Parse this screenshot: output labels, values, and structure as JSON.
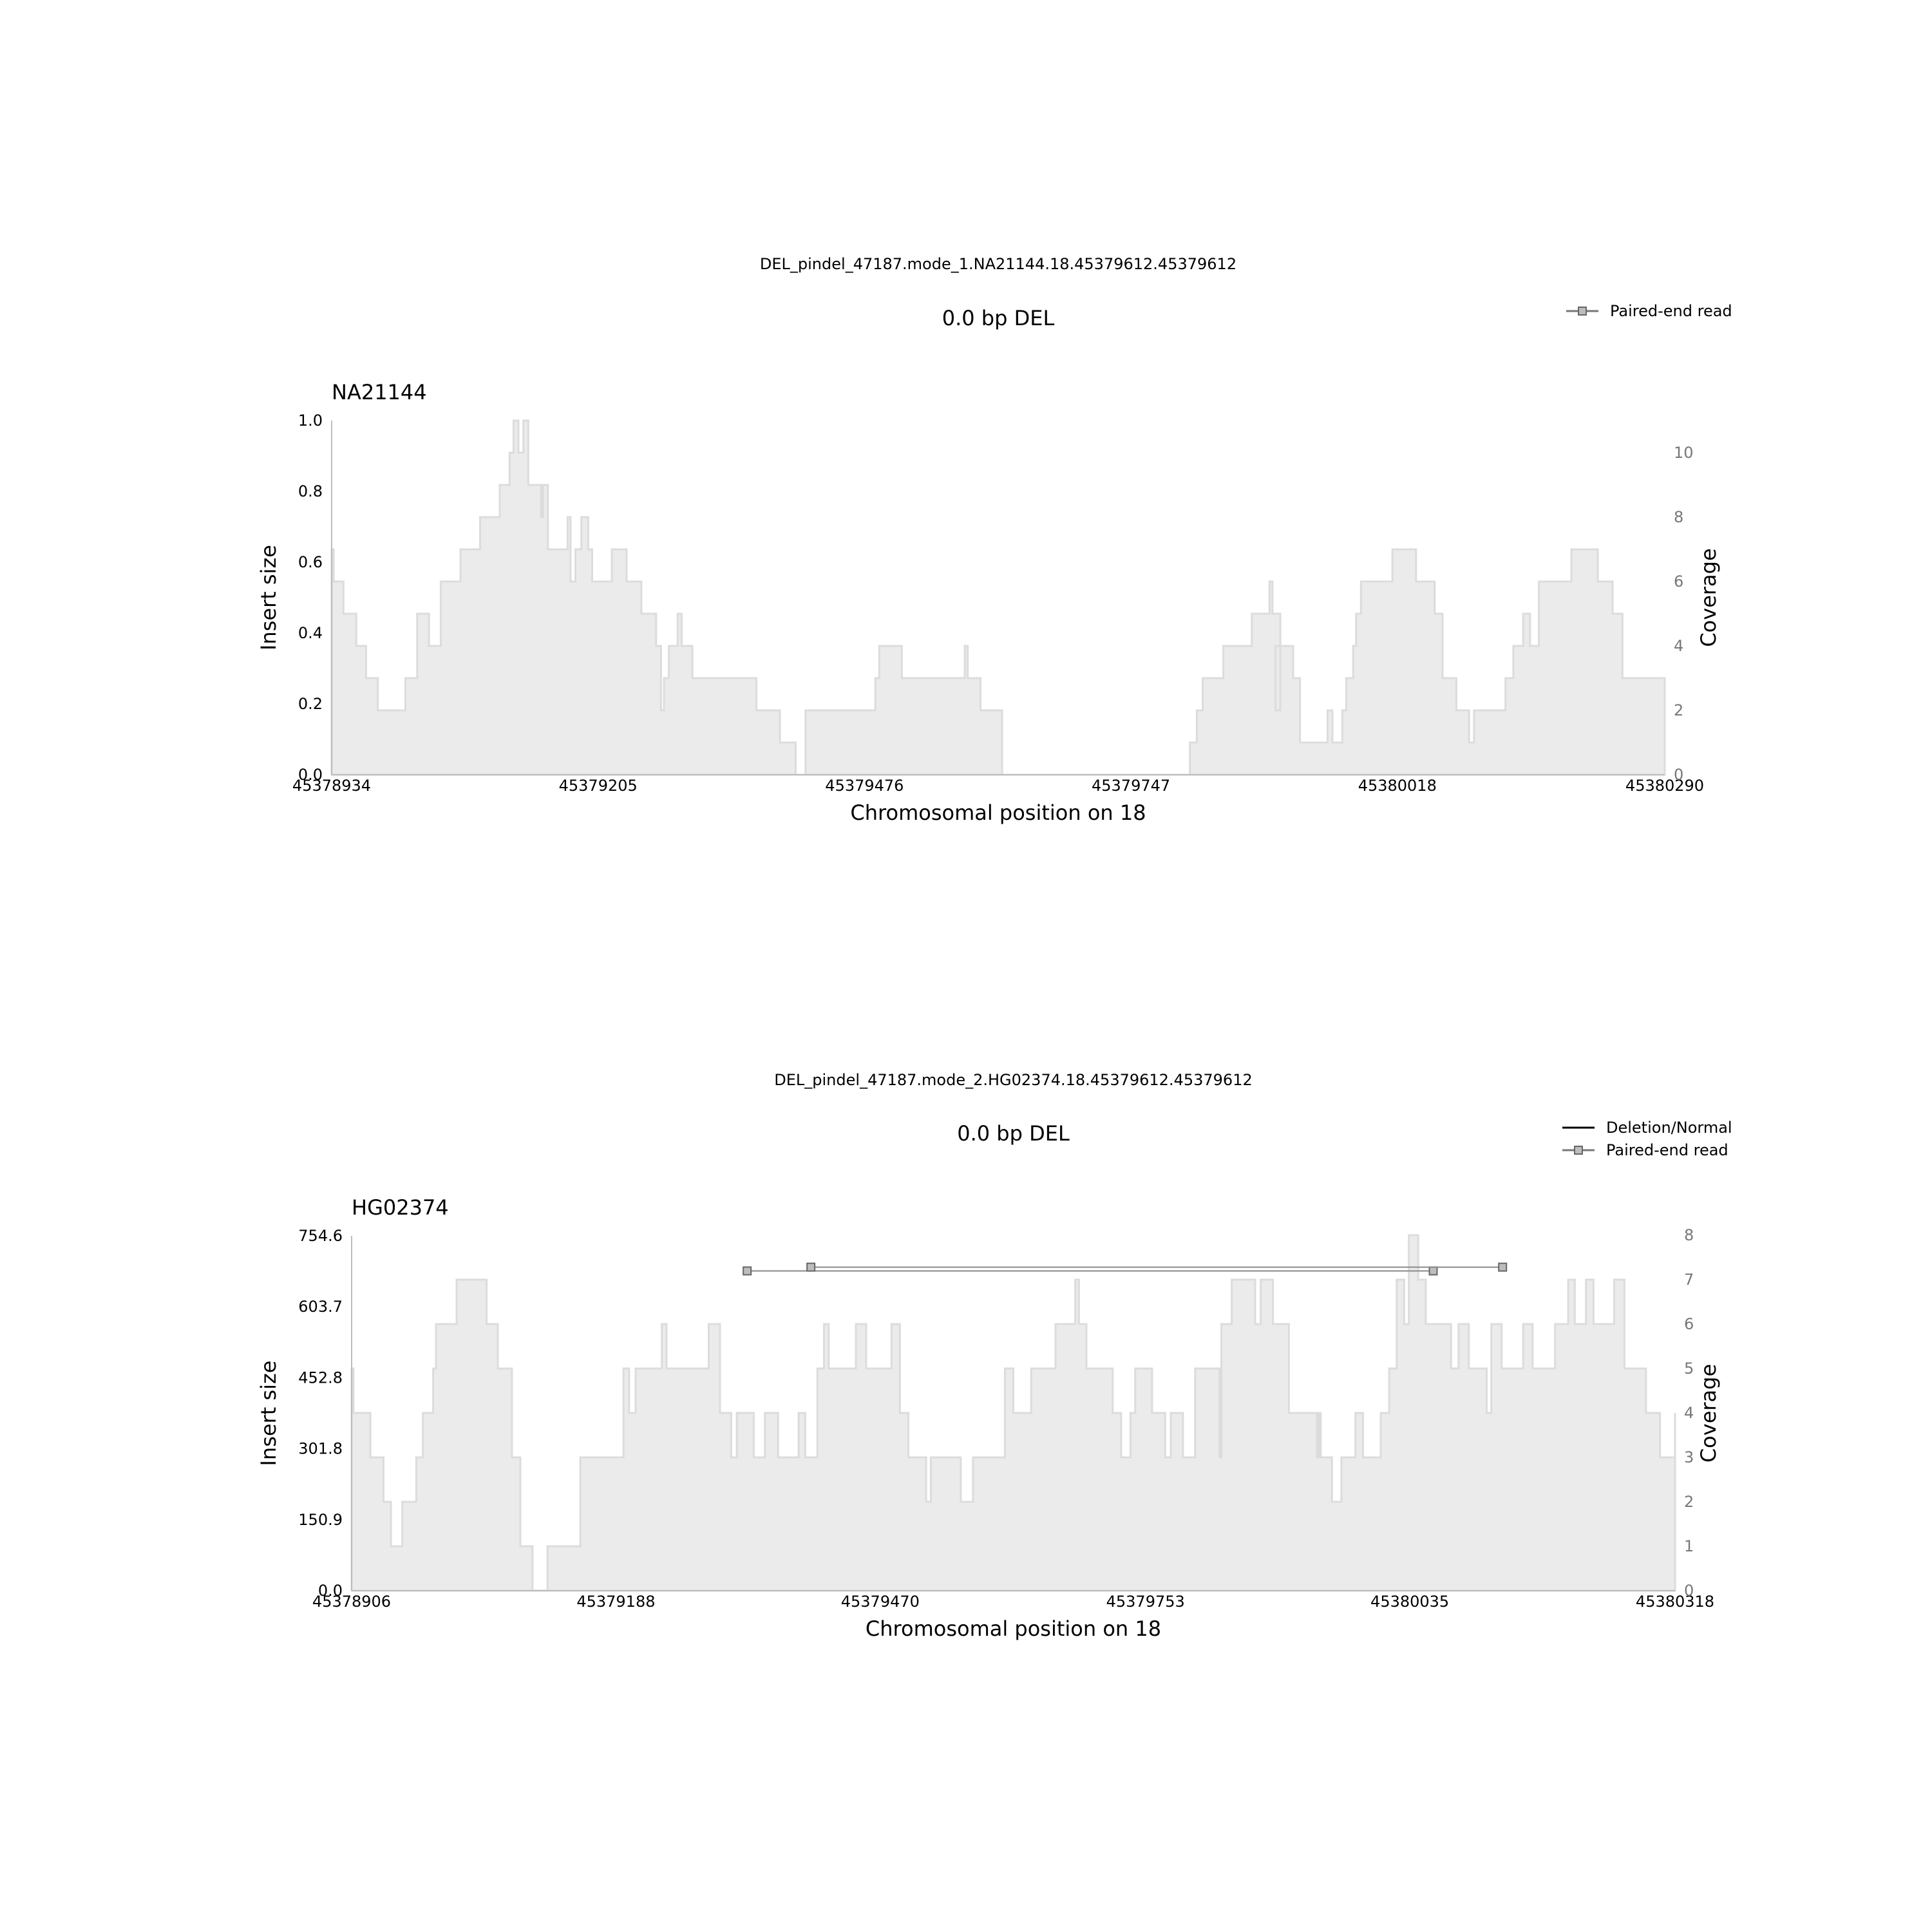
{
  "chart_data": [
    {
      "type": "area",
      "suptitle": "DEL_pindel_47187.mode_1.NA21144.18.45379612.45379612",
      "title": "0.0 bp DEL",
      "sample": "NA21144",
      "xlabel": "Chromosomal position on 18",
      "ylabel": "Insert size",
      "y2label": "Coverage",
      "xlim": [
        45378934,
        45380290
      ],
      "xticks": [
        "45378934",
        "45379205",
        "45379476",
        "45379747",
        "45380018",
        "45380290"
      ],
      "ylim": [
        0,
        1.0
      ],
      "yticks": [
        "0.0",
        "0.2",
        "0.4",
        "0.6",
        "0.8",
        "1.0"
      ],
      "y2lim": [
        0,
        11
      ],
      "y2ticks": [
        "0",
        "2",
        "4",
        "6",
        "8",
        "10"
      ],
      "legend": [
        {
          "label": "Paired-end read",
          "kind": "read"
        }
      ],
      "legend_position": "top-right",
      "series": [
        {
          "kind": "coverage",
          "steps": [
            [
              45378934,
              7
            ],
            [
              45378936,
              6
            ],
            [
              45378946,
              5
            ],
            [
              45378959,
              4
            ],
            [
              45378969,
              3
            ],
            [
              45378981,
              2
            ],
            [
              45379009,
              3
            ],
            [
              45379021,
              5
            ],
            [
              45379033,
              4
            ],
            [
              45379045,
              6
            ],
            [
              45379065,
              7
            ],
            [
              45379085,
              8
            ],
            [
              45379105,
              9
            ],
            [
              45379115,
              10
            ],
            [
              45379119,
              11
            ],
            [
              45379124,
              10
            ],
            [
              45379129,
              11
            ],
            [
              45379134,
              9
            ],
            [
              45379147,
              8
            ],
            [
              45379149,
              9
            ],
            [
              45379154,
              7
            ],
            [
              45379174,
              8
            ],
            [
              45379177,
              6
            ],
            [
              45379182,
              7
            ],
            [
              45379188,
              8
            ],
            [
              45379195,
              7
            ],
            [
              45379199,
              6
            ],
            [
              45379212,
              6
            ],
            [
              45379219,
              7
            ],
            [
              45379234,
              6
            ],
            [
              45379249,
              5
            ],
            [
              45379264,
              4
            ],
            [
              45379269,
              2
            ],
            [
              45379272,
              3
            ],
            [
              45379277,
              4
            ],
            [
              45379286,
              5
            ],
            [
              45379290,
              4
            ],
            [
              45379301,
              3
            ],
            [
              45379366,
              2
            ],
            [
              45379390,
              1
            ],
            [
              45379406,
              0
            ],
            [
              45379416,
              2
            ],
            [
              45379487,
              3
            ],
            [
              45379491,
              4
            ],
            [
              45379514,
              3
            ],
            [
              45379578,
              4
            ],
            [
              45379581,
              3
            ],
            [
              45379594,
              2
            ],
            [
              45379616,
              0
            ],
            [
              45379807,
              1
            ],
            [
              45379814,
              2
            ],
            [
              45379820,
              3
            ],
            [
              45379841,
              4
            ],
            [
              45379870,
              5
            ],
            [
              45379888,
              6
            ],
            [
              45379891,
              5
            ],
            [
              45379899,
              2
            ],
            [
              45379894,
              4
            ],
            [
              45379912,
              3
            ],
            [
              45379919,
              1
            ],
            [
              45379947,
              2
            ],
            [
              45379952,
              1
            ],
            [
              45379962,
              2
            ],
            [
              45379966,
              3
            ],
            [
              45379973,
              4
            ],
            [
              45379976,
              5
            ],
            [
              45379981,
              6
            ],
            [
              45380013,
              7
            ],
            [
              45380037,
              6
            ],
            [
              45380056,
              5
            ],
            [
              45380064,
              3
            ],
            [
              45380078,
              2
            ],
            [
              45380091,
              1
            ],
            [
              45380096,
              2
            ],
            [
              45380128,
              3
            ],
            [
              45380136,
              4
            ],
            [
              45380146,
              5
            ],
            [
              45380153,
              4
            ],
            [
              45380162,
              6
            ],
            [
              45380195,
              7
            ],
            [
              45380222,
              6
            ],
            [
              45380237,
              5
            ],
            [
              45380247,
              3
            ],
            [
              45380290,
              3
            ]
          ]
        }
      ],
      "reads": []
    },
    {
      "type": "area",
      "suptitle": "DEL_pindel_47187.mode_2.HG02374.18.45379612.45379612",
      "title": "0.0 bp DEL",
      "sample": "HG02374",
      "xlabel": "Chromosomal position on 18",
      "ylabel": "Insert size",
      "y2label": "Coverage",
      "xlim": [
        45378906,
        45380318
      ],
      "xticks": [
        "45378906",
        "45379188",
        "45379470",
        "45379753",
        "45380035",
        "45380318"
      ],
      "ylim": [
        0,
        754.6
      ],
      "yticks": [
        "0.0",
        "150.9",
        "301.8",
        "452.8",
        "603.7",
        "754.6"
      ],
      "y2lim": [
        0,
        8
      ],
      "y2ticks": [
        "0",
        "1",
        "2",
        "3",
        "4",
        "5",
        "6",
        "7",
        "8"
      ],
      "legend": [
        {
          "label": "Deletion/Normal",
          "kind": "line"
        },
        {
          "label": "Paired-end read",
          "kind": "read"
        }
      ],
      "legend_position": "top-right",
      "series": [
        {
          "kind": "coverage",
          "steps": [
            [
              45378906,
              5
            ],
            [
              45378908,
              4
            ],
            [
              45378926,
              3
            ],
            [
              45378940,
              2
            ],
            [
              45378948,
              1
            ],
            [
              45378960,
              2
            ],
            [
              45378975,
              3
            ],
            [
              45378982,
              4
            ],
            [
              45378993,
              5
            ],
            [
              45378996,
              6
            ],
            [
              45379018,
              7
            ],
            [
              45379050,
              6
            ],
            [
              45379062,
              5
            ],
            [
              45379077,
              3
            ],
            [
              45379086,
              1
            ],
            [
              45379099,
              0
            ],
            [
              45379115,
              1
            ],
            [
              45379150,
              3
            ],
            [
              45379196,
              5
            ],
            [
              45379202,
              4
            ],
            [
              45379209,
              5
            ],
            [
              45379237,
              6
            ],
            [
              45379242,
              5
            ],
            [
              45379287,
              6
            ],
            [
              45379299,
              4
            ],
            [
              45379311,
              3
            ],
            [
              45379317,
              4
            ],
            [
              45379335,
              3
            ],
            [
              45379347,
              4
            ],
            [
              45379361,
              3
            ],
            [
              45379383,
              4
            ],
            [
              45379390,
              3
            ],
            [
              45379403,
              5
            ],
            [
              45379410,
              6
            ],
            [
              45379415,
              5
            ],
            [
              45379444,
              6
            ],
            [
              45379455,
              5
            ],
            [
              45379482,
              6
            ],
            [
              45379491,
              4
            ],
            [
              45379500,
              3
            ],
            [
              45379519,
              2
            ],
            [
              45379524,
              3
            ],
            [
              45379556,
              2
            ],
            [
              45379569,
              3
            ],
            [
              45379603,
              5
            ],
            [
              45379612,
              4
            ],
            [
              45379631,
              5
            ],
            [
              45379657,
              6
            ],
            [
              45379678,
              7
            ],
            [
              45379682,
              6
            ],
            [
              45379690,
              5
            ],
            [
              45379718,
              4
            ],
            [
              45379727,
              3
            ],
            [
              45379737,
              4
            ],
            [
              45379742,
              5
            ],
            [
              45379760,
              4
            ],
            [
              45379774,
              3
            ],
            [
              45379780,
              4
            ],
            [
              45379793,
              3
            ],
            [
              45379806,
              5
            ],
            [
              45379832,
              3
            ],
            [
              45379834,
              6
            ],
            [
              45379845,
              7
            ],
            [
              45379870,
              6
            ],
            [
              45379876,
              7
            ],
            [
              45379889,
              6
            ],
            [
              45379906,
              4
            ],
            [
              45379936,
              3
            ],
            [
              45379938,
              4
            ],
            [
              45379940,
              3
            ],
            [
              45379952,
              2
            ],
            [
              45379962,
              3
            ],
            [
              45379977,
              4
            ],
            [
              45379985,
              3
            ],
            [
              45380004,
              4
            ],
            [
              45380013,
              5
            ],
            [
              45380021,
              7
            ],
            [
              45380029,
              6
            ],
            [
              45380034,
              8
            ],
            [
              45380044,
              7
            ],
            [
              45380052,
              6
            ],
            [
              45380079,
              5
            ],
            [
              45380087,
              6
            ],
            [
              45380098,
              5
            ],
            [
              45380117,
              4
            ],
            [
              45380122,
              6
            ],
            [
              45380133,
              5
            ],
            [
              45380156,
              6
            ],
            [
              45380166,
              5
            ],
            [
              45380190,
              6
            ],
            [
              45380204,
              7
            ],
            [
              45380211,
              6
            ],
            [
              45380223,
              7
            ],
            [
              45380231,
              6
            ],
            [
              45380253,
              7
            ],
            [
              45380264,
              5
            ],
            [
              45380287,
              4
            ],
            [
              45380302,
              3
            ],
            [
              45380318,
              4
            ]
          ]
        }
      ],
      "reads": [
        {
          "start": 45379328,
          "end": 45380060,
          "insert_size": 680
        },
        {
          "start": 45379396,
          "end": 45380134,
          "insert_size": 688
        }
      ]
    }
  ]
}
